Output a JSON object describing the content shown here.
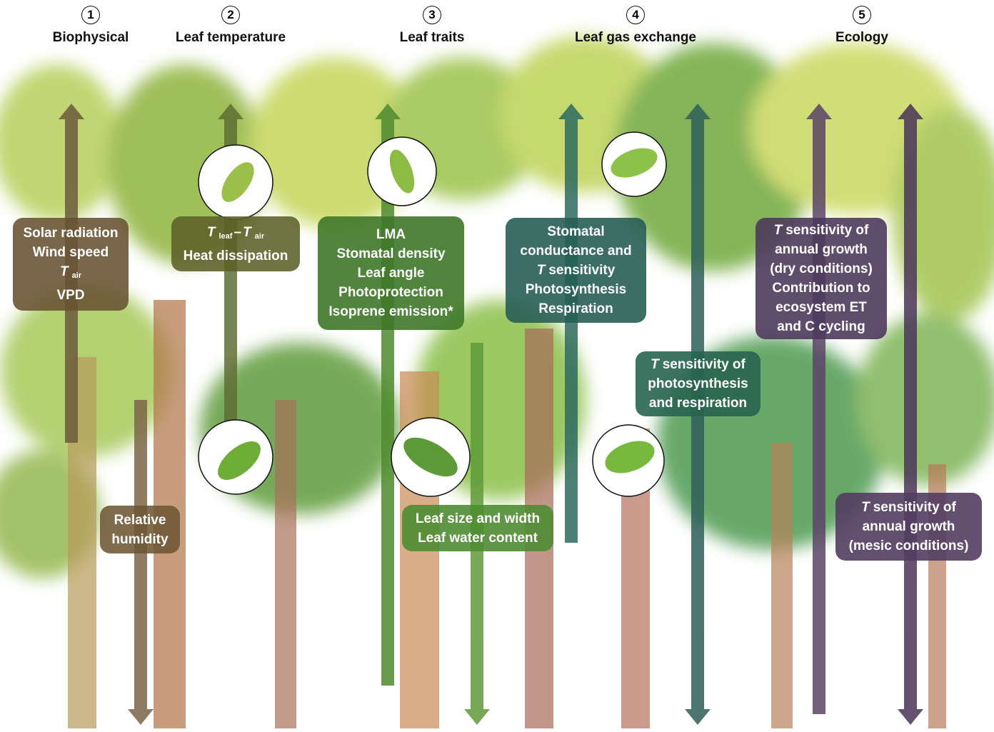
{
  "header": {
    "columns": [
      {
        "number": "1",
        "title": "Biophysical"
      },
      {
        "number": "2",
        "title": "Leaf temperature"
      },
      {
        "number": "3",
        "title": "Leaf traits"
      },
      {
        "number": "4",
        "title": "Leaf gas exchange"
      },
      {
        "number": "5",
        "title": "Ecology"
      }
    ]
  },
  "boxes": [
    {
      "lines": [
        "Solar radiation",
        "Wind speed",
        [
          "T",
          "air"
        ],
        "VPD"
      ]
    },
    {
      "lines": [
        "Relative",
        "humidity"
      ]
    },
    {
      "lines": [
        [
          "T",
          "leaf",
          "–",
          "T",
          "air"
        ],
        "Heat dissipation"
      ]
    },
    {
      "lines": [
        "LMA",
        "Stomatal density",
        "Leaf angle",
        "Photoprotection",
        "Isoprene emission*"
      ]
    },
    {
      "lines": [
        "Leaf size and width",
        "Leaf water content"
      ]
    },
    {
      "lines": [
        "Stomatal",
        "conductance and",
        [
          "T",
          "sensitivity"
        ],
        "Photosynthesis",
        "Respiration"
      ]
    },
    {
      "lines": [
        [
          "T",
          "sensitivity of"
        ],
        "photosynthesis",
        "and respiration"
      ]
    },
    {
      "lines": [
        [
          "T",
          "sensitivity of"
        ],
        "annual growth",
        "(dry conditions)",
        "Contribution to",
        "ecosystem ET",
        "and C cycling"
      ]
    },
    {
      "lines": [
        [
          "T",
          "sensitivity of"
        ],
        "annual growth",
        "(mesic conditions)"
      ]
    }
  ]
}
